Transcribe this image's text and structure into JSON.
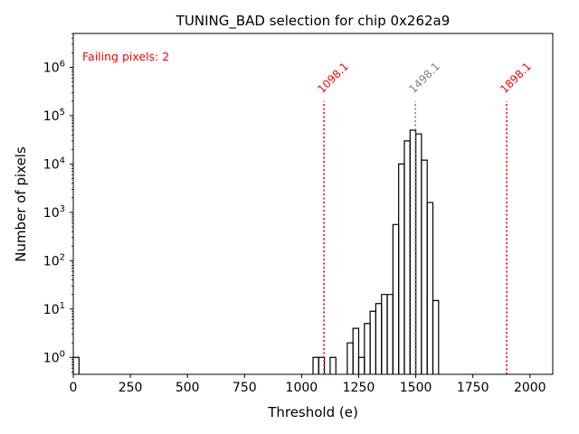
{
  "chart_data": {
    "type": "histogram",
    "title": "TUNING_BAD selection for chip 0x262a9",
    "xlabel": "Threshold (e)",
    "ylabel": "Number of pixels",
    "xlim": [
      0,
      2100
    ],
    "ylim_log10": [
      -0.35,
      6.7
    ],
    "yscale": "log",
    "xticks": [
      0,
      250,
      500,
      750,
      1000,
      1250,
      1500,
      1750,
      2000
    ],
    "xtick_labels": [
      "0",
      "250",
      "500",
      "750",
      "1000",
      "1250",
      "1500",
      "1750",
      "2000"
    ],
    "yticks_exp": [
      0,
      1,
      2,
      3,
      4,
      5,
      6
    ],
    "ytick_base": "10",
    "bin_width": 25,
    "bins": [
      {
        "x0": 0,
        "value": 1
      },
      {
        "x0": 1050,
        "value": 1
      },
      {
        "x0": 1075,
        "value": 1
      },
      {
        "x0": 1125,
        "value": 1
      },
      {
        "x0": 1200,
        "value": 2
      },
      {
        "x0": 1225,
        "value": 4
      },
      {
        "x0": 1250,
        "value": 1
      },
      {
        "x0": 1275,
        "value": 5
      },
      {
        "x0": 1300,
        "value": 9
      },
      {
        "x0": 1325,
        "value": 13
      },
      {
        "x0": 1350,
        "value": 20
      },
      {
        "x0": 1375,
        "value": 20
      },
      {
        "x0": 1400,
        "value": 560
      },
      {
        "x0": 1425,
        "value": 10000
      },
      {
        "x0": 1450,
        "value": 30000
      },
      {
        "x0": 1475,
        "value": 50000
      },
      {
        "x0": 1500,
        "value": 42000
      },
      {
        "x0": 1525,
        "value": 12000
      },
      {
        "x0": 1550,
        "value": 1600
      },
      {
        "x0": 1575,
        "value": 15
      }
    ],
    "reference_lines": [
      {
        "x": 1098.1,
        "label": "1098.1",
        "color": "#ff0000"
      },
      {
        "x": 1498.1,
        "label": "1498.1",
        "color": "#808080"
      },
      {
        "x": 1898.1,
        "label": "1898.1",
        "color": "#ff0000"
      }
    ],
    "reference_line_top_value": 200000,
    "annotation": {
      "text": "Failing pixels: 2",
      "color": "#ff0000"
    }
  }
}
